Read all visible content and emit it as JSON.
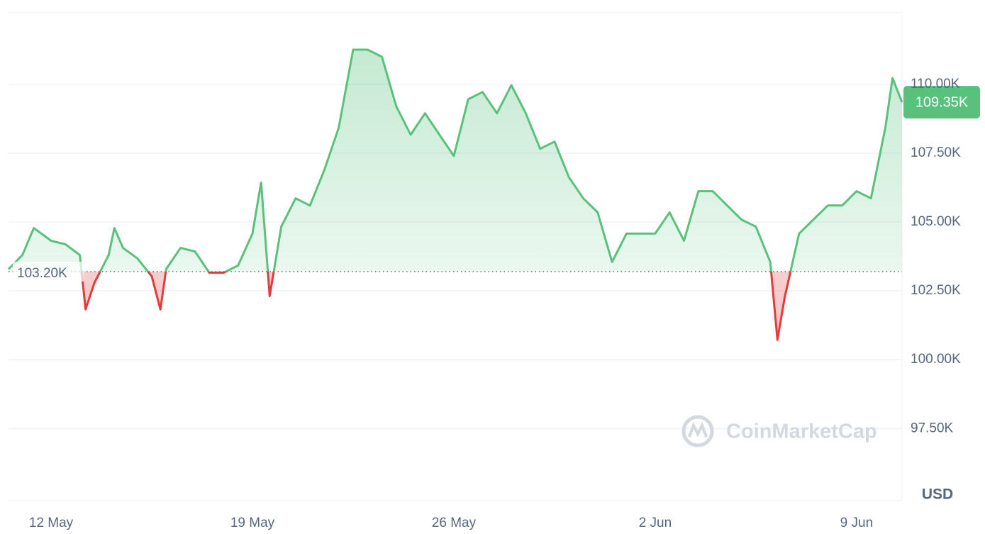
{
  "chart_data": {
    "type": "line",
    "x": [
      -1.48,
      -1,
      -0.6,
      0,
      0.5,
      1,
      1.2,
      1.5,
      2,
      2.2,
      2.5,
      3,
      3.5,
      3.8,
      4,
      4.5,
      5,
      5.5,
      6,
      6.5,
      7,
      7.3,
      7.6,
      8,
      8.5,
      9,
      9.5,
      10,
      10.5,
      11,
      11.5,
      12,
      12.5,
      13,
      13.5,
      14,
      14.5,
      15,
      15.5,
      16,
      16.5,
      17,
      17.5,
      18,
      18.5,
      19,
      19.5,
      20,
      20.5,
      21,
      21.5,
      22,
      22.5,
      23,
      23.5,
      24,
      24.5,
      25,
      25.25,
      25.5,
      26,
      26.5,
      27,
      27.5,
      28,
      28.5,
      29,
      29.25,
      29.58
    ],
    "series": [
      {
        "color": "#58c27d",
        "negative_color": "#e03c3c",
        "values": [
          103290,
          103800,
          104780,
          104320,
          104190,
          103800,
          101830,
          102780,
          103800,
          104780,
          104060,
          103680,
          103030,
          101830,
          103290,
          104060,
          103930,
          103160,
          103160,
          103420,
          104580,
          106440,
          102310,
          104830,
          105860,
          105600,
          106890,
          108430,
          111260,
          111260,
          111000,
          109200,
          108170,
          108950,
          108170,
          107400,
          109460,
          109720,
          108950,
          109970,
          108950,
          107660,
          107920,
          106630,
          105860,
          105350,
          103550,
          104580,
          104580,
          104580,
          105350,
          104320,
          106120,
          106120,
          105600,
          105090,
          104830,
          103550,
          100720,
          102260,
          104580,
          105090,
          105600,
          105600,
          106120,
          105860,
          108430,
          110230,
          109350
        ]
      }
    ],
    "baseline": {
      "value": 103200,
      "label": "103.20K"
    },
    "last_price": {
      "value": 109350,
      "label": "109.35K"
    },
    "xlim": [
      -1.48,
      29.58
    ],
    "xticks": [
      {
        "value": 0,
        "label": "12 May"
      },
      {
        "value": 7,
        "label": "19 May"
      },
      {
        "value": 14,
        "label": "26 May"
      },
      {
        "value": 21,
        "label": "2 Jun"
      },
      {
        "value": 28,
        "label": "9 Jun"
      }
    ],
    "ylim": [
      94880,
      112600
    ],
    "yticks": [
      {
        "value": 97500,
        "label": "97.50K"
      },
      {
        "value": 100000,
        "label": "100.00K"
      },
      {
        "value": 102500,
        "label": "102.50K"
      },
      {
        "value": 105000,
        "label": "105.00K"
      },
      {
        "value": 107500,
        "label": "107.50K"
      },
      {
        "value": 110000,
        "label": "110.00K"
      }
    ],
    "currency": "USD",
    "watermark": "CoinMarketCap",
    "grid": true
  }
}
